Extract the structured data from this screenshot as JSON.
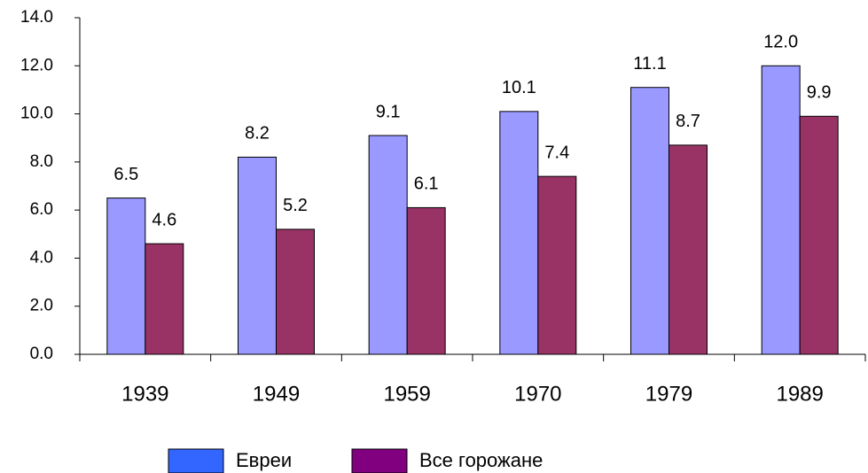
{
  "chart_data": {
    "type": "bar",
    "categories": [
      "1939",
      "1949",
      "1959",
      "1970",
      "1979",
      "1989"
    ],
    "series": [
      {
        "name": "Евреи",
        "color": "#9999ff",
        "legend_color": "#3366ff",
        "values": [
          6.5,
          8.2,
          9.1,
          10.1,
          11.1,
          12.0
        ],
        "value_labels": [
          "6.5",
          "8.2",
          "9.1",
          "10.1",
          "11.1",
          "12.0"
        ]
      },
      {
        "name": "Все горожане",
        "color": "#993366",
        "legend_color": "#800080",
        "values": [
          4.6,
          5.2,
          6.1,
          7.4,
          8.7,
          9.9
        ],
        "value_labels": [
          "4.6",
          "5.2",
          "6.1",
          "7.4",
          "8.7",
          "9.9"
        ]
      }
    ],
    "ylim": [
      0,
      14
    ],
    "yticks": [
      {
        "value": 0,
        "label": "0.0"
      },
      {
        "value": 2,
        "label": "2.0"
      },
      {
        "value": 4,
        "label": "4.0"
      },
      {
        "value": 6,
        "label": "6.0"
      },
      {
        "value": 8,
        "label": "8.0"
      },
      {
        "value": 10,
        "label": "10.0"
      },
      {
        "value": 12,
        "label": "12.0"
      },
      {
        "value": 14,
        "label": "14.0"
      }
    ],
    "grid": false
  }
}
